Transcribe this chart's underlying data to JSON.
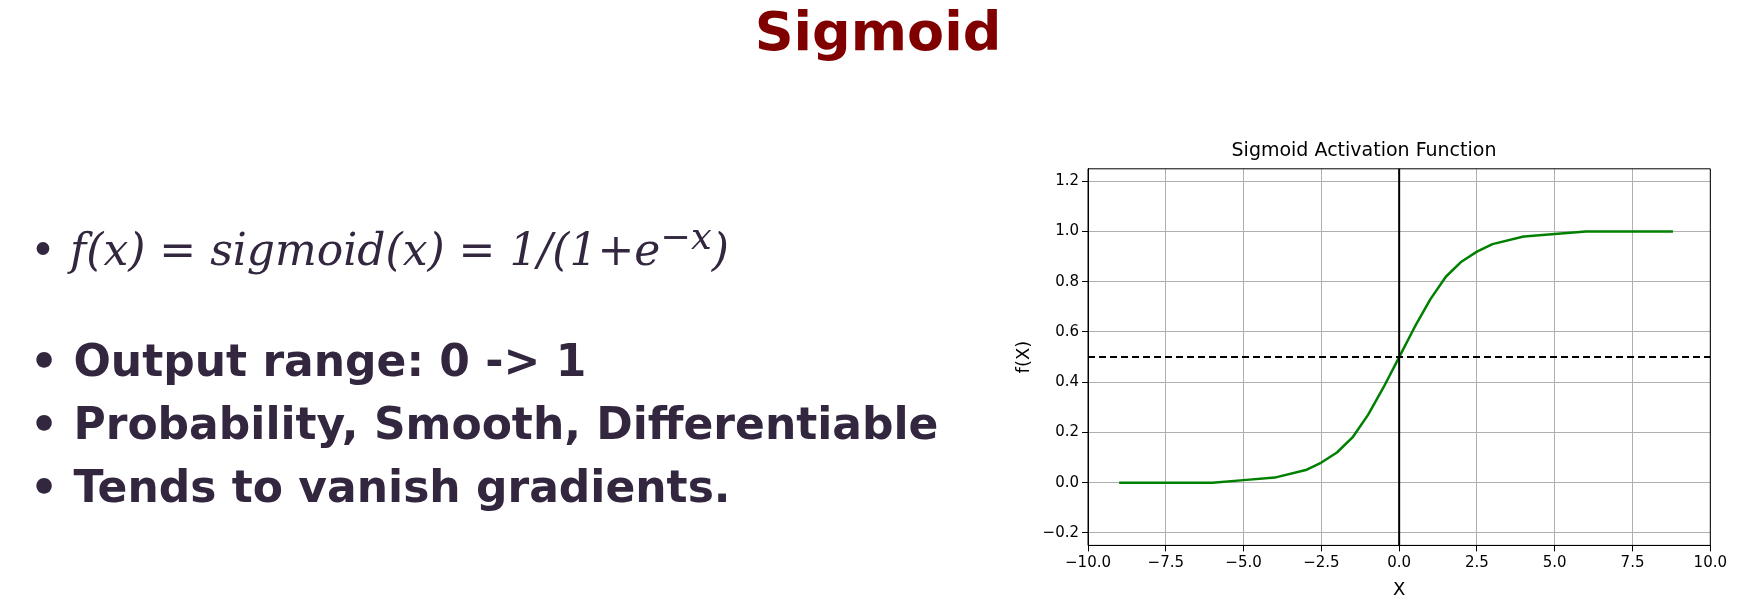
{
  "chart_data": {
    "type": "line",
    "title": "Sigmoid",
    "subtitle": "Sigmoid Activation Function",
    "xlabel": "X",
    "ylabel": "f(X)",
    "annotations": [
      "• f(x) = sigmoid(x) = 1/(1+e$^{−x}$)",
      "• Output range: 0 -> 1",
      "• Probability, Smooth, Differentiable",
      "• Tends to vanish gradients."
    ],
    "x": [
      -9,
      -8,
      -7,
      -6,
      -5,
      -4,
      -3,
      -2.5,
      -2,
      -1.5,
      -1,
      -0.5,
      0,
      0.5,
      1,
      1.5,
      2,
      2.5,
      3,
      4,
      5,
      6,
      7,
      8,
      8.8
    ],
    "series": [
      {
        "color": "#008000",
        "values": [
          0,
          0,
          0,
          0,
          0.01,
          0.02,
          0.05,
          0.08,
          0.12,
          0.18,
          0.27,
          0.38,
          0.5,
          0.62,
          0.73,
          0.82,
          0.88,
          0.92,
          0.95,
          0.98,
          0.99,
          1,
          1,
          1,
          1
        ]
      }
    ],
    "xlim": [
      -10,
      10
    ],
    "xticks": [
      {
        "value": -10,
        "label": "−10.0"
      },
      {
        "value": -7.5,
        "label": "−7.5"
      },
      {
        "value": -5,
        "label": "−5.0"
      },
      {
        "value": -2.5,
        "label": "−2.5"
      },
      {
        "value": 0,
        "label": "0.0"
      },
      {
        "value": 2.5,
        "label": "2.5"
      },
      {
        "value": 5,
        "label": "5.0"
      },
      {
        "value": 7.5,
        "label": "7.5"
      },
      {
        "value": 10,
        "label": "10.0"
      }
    ],
    "ylim": [
      -0.25,
      1.25
    ],
    "yticks": [
      {
        "value": -0.2,
        "label": "−0.2"
      },
      {
        "value": 0,
        "label": "0.0"
      },
      {
        "value": 0.2,
        "label": "0.2"
      },
      {
        "value": 0.4,
        "label": "0.4"
      },
      {
        "value": 0.6,
        "label": "0.6"
      },
      {
        "value": 0.8,
        "label": "0.8"
      },
      {
        "value": 1,
        "label": "1.0"
      },
      {
        "value": 1.2,
        "label": "1.2"
      }
    ],
    "ref_lines": [
      {
        "axis": "y",
        "value": 0.5,
        "color": "#000000",
        "line_style": "dashed"
      },
      {
        "axis": "x",
        "value": 0,
        "color": "#000000",
        "line_style": "solid"
      }
    ],
    "grid": true,
    "legend": false,
    "marker": "none",
    "line_style": "solid"
  }
}
